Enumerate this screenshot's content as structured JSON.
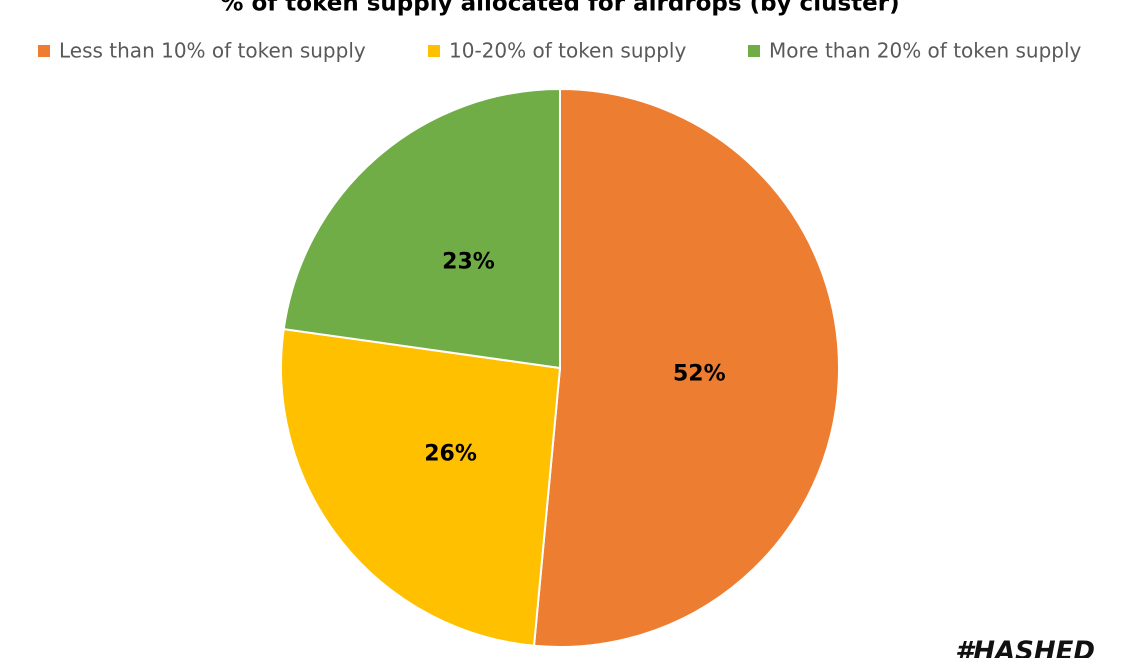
{
  "chart_data": {
    "type": "pie",
    "title": "% of token supply allocated for airdrops (by cluster)",
    "categories": [
      "Less than 10% of token supply",
      "10-20% of token supply",
      "More than 20% of token supply"
    ],
    "values": [
      52,
      26,
      23
    ],
    "value_labels": [
      "52%",
      "26%",
      "23%"
    ],
    "colors": [
      "#ed7d31",
      "#ffc000",
      "#70ad47"
    ],
    "legend": "top",
    "watermark": "#HASHED"
  }
}
